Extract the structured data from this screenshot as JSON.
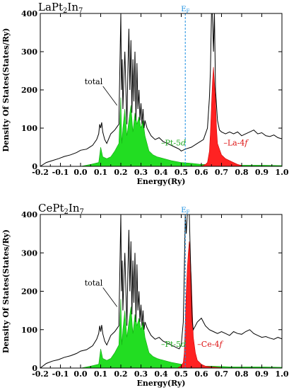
{
  "chart_data": [
    {
      "type": "line",
      "title": "LaPt₂In₇",
      "xlabel": "Energy(Ry)",
      "ylabel": "Density Of States(States/Ry)",
      "xlim": [
        -0.2,
        1.0
      ],
      "ylim": [
        0,
        400
      ],
      "xticks": [
        "-0.2",
        "-0.1",
        "0.0",
        "0.1",
        "0.2",
        "0.3",
        "0.4",
        "0.5",
        "0.6",
        "0.7",
        "0.8",
        "0.9",
        "1.0"
      ],
      "yticks": [
        "0",
        "100",
        "200",
        "300",
        "400"
      ],
      "fermi_energy": 0.52,
      "fermi_label": "EF",
      "colors": {
        "total": "#000000",
        "pt5d": "#22dd22",
        "f": "#ff2222",
        "fermi": "#1a8fe0"
      },
      "series": [
        {
          "key": "total",
          "x": [
            -0.2,
            -0.17,
            -0.14,
            -0.11,
            -0.08,
            -0.05,
            -0.02,
            0.0,
            0.03,
            0.06,
            0.08,
            0.09,
            0.095,
            0.1,
            0.105,
            0.11,
            0.12,
            0.13,
            0.15,
            0.17,
            0.19,
            0.2,
            0.203,
            0.207,
            0.21,
            0.215,
            0.22,
            0.23,
            0.235,
            0.24,
            0.245,
            0.25,
            0.255,
            0.26,
            0.265,
            0.27,
            0.275,
            0.28,
            0.285,
            0.29,
            0.295,
            0.3,
            0.305,
            0.31,
            0.315,
            0.32,
            0.33,
            0.34,
            0.35,
            0.37,
            0.39,
            0.41,
            0.43,
            0.45,
            0.47,
            0.49,
            0.5,
            0.52,
            0.55,
            0.58,
            0.61,
            0.63,
            0.64,
            0.645,
            0.65,
            0.655,
            0.66,
            0.665,
            0.67,
            0.675,
            0.68,
            0.69,
            0.7,
            0.72,
            0.74,
            0.76,
            0.78,
            0.8,
            0.82,
            0.84,
            0.86,
            0.88,
            0.9,
            0.92,
            0.94,
            0.96,
            0.98,
            1.0
          ],
          "y": [
            0,
            10,
            15,
            20,
            26,
            30,
            36,
            42,
            45,
            55,
            70,
            85,
            110,
            100,
            115,
            90,
            70,
            60,
            85,
            95,
            110,
            400,
            200,
            280,
            150,
            230,
            300,
            110,
            250,
            360,
            200,
            330,
            140,
            280,
            170,
            300,
            120,
            270,
            150,
            200,
            120,
            165,
            110,
            150,
            100,
            120,
            100,
            90,
            80,
            70,
            75,
            65,
            60,
            55,
            50,
            45,
            40,
            45,
            50,
            60,
            70,
            100,
            180,
            250,
            400,
            400,
            300,
            400,
            200,
            160,
            120,
            95,
            90,
            85,
            90,
            85,
            90,
            80,
            85,
            90,
            95,
            85,
            88,
            80,
            78,
            82,
            75,
            72
          ]
        },
        {
          "key": "pt5d",
          "x": [
            0.0,
            0.05,
            0.09,
            0.1,
            0.11,
            0.13,
            0.15,
            0.17,
            0.19,
            0.2,
            0.205,
            0.21,
            0.22,
            0.23,
            0.24,
            0.25,
            0.26,
            0.27,
            0.28,
            0.29,
            0.3,
            0.31,
            0.32,
            0.34,
            0.36,
            0.38,
            0.4,
            0.45,
            0.5,
            0.55,
            0.6,
            0.65,
            0.7,
            0.75,
            0.8,
            0.9,
            1.0
          ],
          "y": [
            0,
            5,
            10,
            50,
            25,
            20,
            25,
            40,
            60,
            180,
            60,
            100,
            150,
            80,
            120,
            160,
            90,
            140,
            110,
            130,
            100,
            120,
            80,
            40,
            30,
            25,
            22,
            15,
            10,
            8,
            5,
            5,
            4,
            3,
            3,
            3,
            2
          ]
        },
        {
          "key": "f",
          "x": [
            0.6,
            0.62,
            0.63,
            0.64,
            0.645,
            0.65,
            0.655,
            0.66,
            0.665,
            0.67,
            0.675,
            0.68,
            0.69,
            0.7,
            0.71,
            0.72,
            0.74,
            0.76,
            0.78,
            0.8
          ],
          "y": [
            0,
            5,
            10,
            40,
            90,
            160,
            220,
            260,
            220,
            180,
            100,
            60,
            45,
            30,
            25,
            20,
            15,
            10,
            5,
            2
          ]
        }
      ],
      "annotations": [
        {
          "text": "total",
          "x": 0.02,
          "y": 215
        },
        {
          "text": "Pt-5d",
          "x": 0.4,
          "y": 55
        },
        {
          "text": "La-4f",
          "x": 0.71,
          "y": 55
        }
      ]
    },
    {
      "type": "line",
      "title": "CePt₂In₇",
      "xlabel": "Energy(Ry)",
      "ylabel": "Density Of States(States/Ry)",
      "xlim": [
        -0.2,
        1.0
      ],
      "ylim": [
        0,
        400
      ],
      "xticks": [
        "-0.2",
        "-0.1",
        "0.0",
        "0.1",
        "0.2",
        "0.3",
        "0.4",
        "0.5",
        "0.6",
        "0.7",
        "0.8",
        "0.9",
        "1.0"
      ],
      "yticks": [
        "0",
        "100",
        "200",
        "300",
        "400"
      ],
      "fermi_energy": 0.52,
      "fermi_label": "EF",
      "colors": {
        "total": "#000000",
        "pt5d": "#22dd22",
        "f": "#ff2222",
        "fermi": "#1a8fe0"
      },
      "series": [
        {
          "key": "total",
          "x": [
            -0.2,
            -0.17,
            -0.14,
            -0.11,
            -0.08,
            -0.05,
            -0.02,
            0.0,
            0.03,
            0.06,
            0.08,
            0.09,
            0.095,
            0.1,
            0.105,
            0.11,
            0.12,
            0.13,
            0.15,
            0.17,
            0.19,
            0.2,
            0.203,
            0.207,
            0.21,
            0.215,
            0.22,
            0.23,
            0.235,
            0.24,
            0.245,
            0.25,
            0.255,
            0.26,
            0.265,
            0.27,
            0.275,
            0.28,
            0.285,
            0.29,
            0.295,
            0.3,
            0.305,
            0.31,
            0.315,
            0.32,
            0.33,
            0.34,
            0.35,
            0.37,
            0.39,
            0.41,
            0.43,
            0.45,
            0.47,
            0.49,
            0.5,
            0.51,
            0.515,
            0.52,
            0.525,
            0.53,
            0.535,
            0.54,
            0.545,
            0.55,
            0.555,
            0.56,
            0.57,
            0.58,
            0.6,
            0.62,
            0.64,
            0.66,
            0.68,
            0.7,
            0.72,
            0.74,
            0.76,
            0.78,
            0.8,
            0.82,
            0.84,
            0.86,
            0.88,
            0.9,
            0.92,
            0.94,
            0.96,
            0.98,
            1.0
          ],
          "y": [
            0,
            12,
            18,
            22,
            28,
            32,
            38,
            44,
            48,
            58,
            75,
            90,
            110,
            95,
            112,
            90,
            70,
            60,
            85,
            95,
            110,
            400,
            200,
            280,
            150,
            230,
            300,
            110,
            250,
            360,
            200,
            330,
            140,
            280,
            170,
            300,
            120,
            270,
            150,
            200,
            120,
            165,
            110,
            150,
            100,
            120,
            105,
            95,
            85,
            75,
            80,
            70,
            65,
            60,
            55,
            50,
            60,
            120,
            250,
            400,
            350,
            400,
            400,
            400,
            300,
            200,
            120,
            100,
            110,
            120,
            130,
            110,
            100,
            95,
            90,
            95,
            90,
            85,
            95,
            90,
            88,
            95,
            100,
            90,
            85,
            80,
            82,
            78,
            75,
            80,
            76
          ]
        },
        {
          "key": "pt5d",
          "x": [
            0.0,
            0.05,
            0.09,
            0.1,
            0.11,
            0.13,
            0.15,
            0.17,
            0.19,
            0.2,
            0.205,
            0.21,
            0.22,
            0.23,
            0.24,
            0.25,
            0.26,
            0.27,
            0.28,
            0.29,
            0.3,
            0.31,
            0.32,
            0.34,
            0.36,
            0.38,
            0.4,
            0.45,
            0.5,
            0.55,
            0.6,
            0.65,
            0.7,
            0.75,
            0.8,
            0.9,
            1.0
          ],
          "y": [
            0,
            5,
            10,
            50,
            25,
            20,
            25,
            40,
            60,
            180,
            60,
            100,
            150,
            80,
            120,
            160,
            90,
            140,
            110,
            130,
            100,
            120,
            80,
            40,
            30,
            25,
            22,
            15,
            10,
            8,
            5,
            5,
            4,
            3,
            3,
            3,
            2
          ]
        },
        {
          "key": "f",
          "x": [
            0.48,
            0.5,
            0.51,
            0.515,
            0.52,
            0.525,
            0.53,
            0.535,
            0.54,
            0.545,
            0.55,
            0.555,
            0.56,
            0.57,
            0.58,
            0.6,
            0.62,
            0.65,
            0.7
          ],
          "y": [
            0,
            5,
            15,
            40,
            120,
            200,
            260,
            300,
            330,
            290,
            230,
            150,
            80,
            40,
            20,
            10,
            5,
            3,
            1
          ]
        }
      ],
      "annotations": [
        {
          "text": "total",
          "x": 0.02,
          "y": 215
        },
        {
          "text": "Pt-5d",
          "x": 0.4,
          "y": 55
        },
        {
          "text": "Ce-4f",
          "x": 0.58,
          "y": 55
        }
      ]
    }
  ]
}
